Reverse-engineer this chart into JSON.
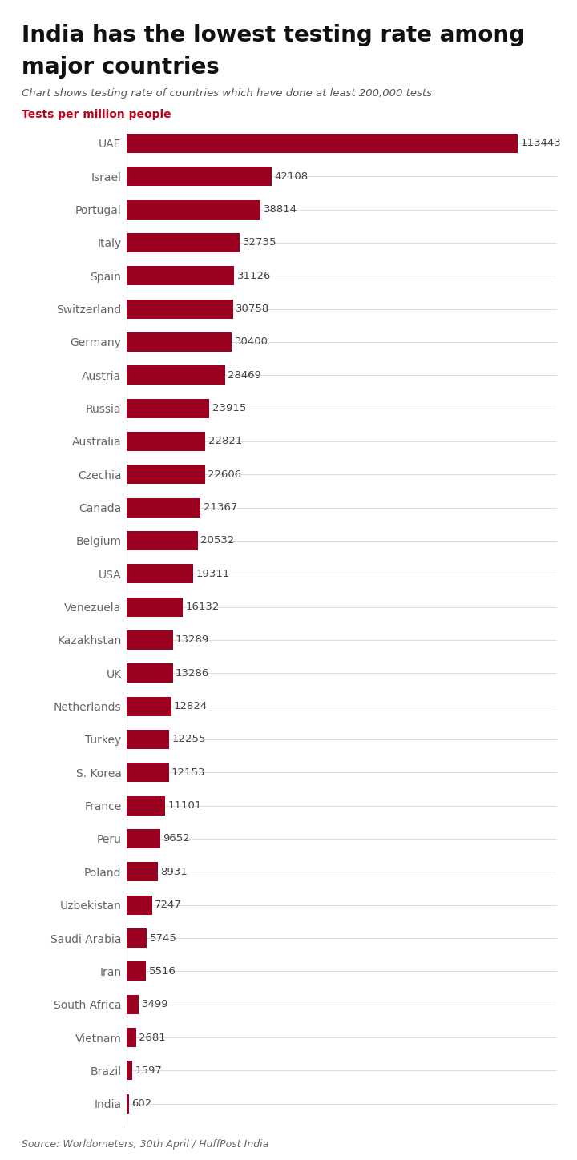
{
  "title_line1": "India has the lowest testing rate among",
  "title_line2": "major countries",
  "subtitle": "Chart shows testing rate of countries which have done at least 200,000 tests",
  "axis_label": "Tests per million people",
  "source": "Source: Worldometers, 30th April / HuffPost India",
  "bar_color": "#9b0020",
  "title_color": "#111111",
  "subtitle_color": "#555555",
  "axis_label_color": "#c0001a",
  "source_color": "#666666",
  "value_label_color": "#444444",
  "background_color": "#ffffff",
  "gridline_color": "#d8d8d8",
  "countries": [
    "UAE",
    "Israel",
    "Portugal",
    "Italy",
    "Spain",
    "Switzerland",
    "Germany",
    "Austria",
    "Russia",
    "Australia",
    "Czechia",
    "Canada",
    "Belgium",
    "USA",
    "Venezuela",
    "Kazakhstan",
    "UK",
    "Netherlands",
    "Turkey",
    "S. Korea",
    "France",
    "Peru",
    "Poland",
    "Uzbekistan",
    "Saudi Arabia",
    "Iran",
    "South Africa",
    "Vietnam",
    "Brazil",
    "India"
  ],
  "values": [
    113443,
    42108,
    38814,
    32735,
    31126,
    30758,
    30400,
    28469,
    23915,
    22821,
    22606,
    21367,
    20532,
    19311,
    16132,
    13289,
    13286,
    12824,
    12255,
    12153,
    11101,
    9652,
    8931,
    7247,
    5745,
    5516,
    3499,
    2681,
    1597,
    602
  ]
}
